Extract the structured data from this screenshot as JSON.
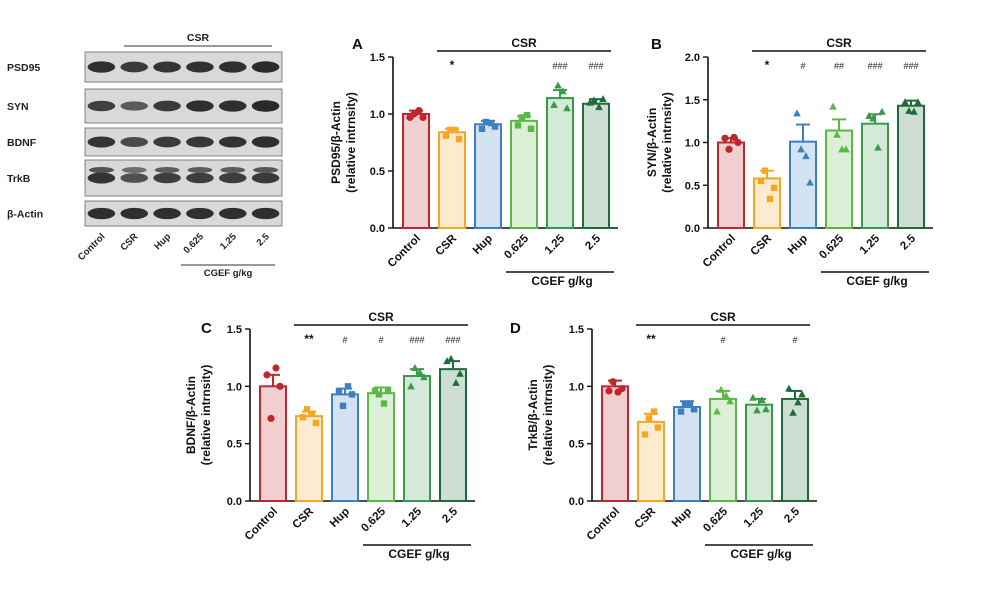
{
  "blot": {
    "group_label": "CSR",
    "proteins": [
      "PSD95",
      "SYN",
      "BDNF",
      "TrkB",
      "β-Actin"
    ],
    "lanes": [
      "Control",
      "CSR",
      "Hup",
      "0.625",
      "1.25",
      "2.5"
    ],
    "dose_label": "CGEF g/kg"
  },
  "colors": {
    "Control": "#c0272d",
    "CSR": "#f7a623",
    "Hup": "#3d7fc1",
    "0.625": "#5ab946",
    "1.25": "#3a9a4a",
    "2.5": "#1f6b3a"
  },
  "chart_data": [
    {
      "panel": "A",
      "type": "bar",
      "categories": [
        "Control",
        "CSR",
        "Hup",
        "0.625",
        "1.25",
        "2.5"
      ],
      "values": [
        1.0,
        0.84,
        0.91,
        0.94,
        1.14,
        1.09
      ],
      "errors": [
        0.03,
        0.03,
        0.03,
        0.04,
        0.07,
        0.04
      ],
      "points": [
        [
          0.97,
          1.0,
          1.03,
          0.97
        ],
        [
          0.81,
          0.86,
          0.86,
          0.78
        ],
        [
          0.87,
          0.93,
          0.92,
          0.89
        ],
        [
          0.9,
          0.97,
          0.99,
          0.87
        ],
        [
          1.08,
          1.25,
          1.2,
          1.05
        ],
        [
          1.1,
          1.12,
          1.06,
          1.13
        ]
      ],
      "markers": [
        "circle",
        "square",
        "square",
        "square",
        "triangle",
        "triangle"
      ],
      "significance": [
        "",
        "*",
        "",
        "",
        "###",
        "###"
      ],
      "ylabel": [
        "PSD95/β-Actin",
        "(relative intrnsity)"
      ],
      "ylim": [
        0,
        1.5
      ],
      "yticks": [
        "0.0",
        "0.5",
        "1.0",
        "1.5"
      ],
      "group_bracket": "CSR",
      "dose_label": "CGEF g/kg"
    },
    {
      "panel": "B",
      "type": "bar",
      "categories": [
        "Control",
        "CSR",
        "Hup",
        "0.625",
        "1.25",
        "2.5"
      ],
      "values": [
        1.0,
        0.58,
        1.01,
        1.14,
        1.22,
        1.43
      ],
      "errors": [
        0.05,
        0.09,
        0.2,
        0.13,
        0.11,
        0.06
      ],
      "points": [
        [
          1.05,
          0.92,
          1.06,
          1.0
        ],
        [
          0.55,
          0.67,
          0.34,
          0.47
        ],
        [
          1.34,
          0.92,
          0.84,
          0.53
        ],
        [
          1.42,
          1.09,
          0.92,
          0.92
        ],
        [
          1.31,
          1.28,
          0.94,
          1.36
        ],
        [
          1.47,
          1.37,
          1.36,
          1.47
        ]
      ],
      "markers": [
        "circle",
        "square",
        "triangle",
        "triangle",
        "triangle",
        "triangle"
      ],
      "significance": [
        "",
        "*",
        "#",
        "##",
        "###",
        "###"
      ],
      "ylabel": [
        "SYN/β-Actin",
        "(relative intrnsity)"
      ],
      "ylim": [
        0,
        2.0
      ],
      "yticks": [
        "0.0",
        "0.5",
        "1.0",
        "1.5",
        "2.0"
      ],
      "group_bracket": "CSR",
      "dose_label": "CGEF g/kg"
    },
    {
      "panel": "C",
      "type": "bar",
      "categories": [
        "Control",
        "CSR",
        "Hup",
        "0.625",
        "1.25",
        "2.5"
      ],
      "values": [
        1.0,
        0.74,
        0.93,
        0.94,
        1.09,
        1.15
      ],
      "errors": [
        0.1,
        0.04,
        0.05,
        0.05,
        0.06,
        0.07
      ],
      "points": [
        [
          1.1,
          0.72,
          1.16,
          1.0
        ],
        [
          0.73,
          0.8,
          0.76,
          0.68
        ],
        [
          0.96,
          0.83,
          1.0,
          0.93
        ],
        [
          0.96,
          0.93,
          0.85,
          0.97
        ],
        [
          1.0,
          1.16,
          1.12,
          1.08
        ],
        [
          1.22,
          1.24,
          1.03,
          1.11
        ]
      ],
      "markers": [
        "circle",
        "square",
        "square",
        "square",
        "triangle",
        "triangle"
      ],
      "significance": [
        "",
        "**",
        "#",
        "#",
        "###",
        "###"
      ],
      "ylabel": [
        "BDNF/β-Actin",
        "(relative intrnsity)"
      ],
      "ylim": [
        0,
        1.5
      ],
      "yticks": [
        "0.0",
        "0.5",
        "1.0",
        "1.5"
      ],
      "group_bracket": "CSR",
      "dose_label": "CGEF g/kg"
    },
    {
      "panel": "D",
      "type": "bar",
      "categories": [
        "Control",
        "CSR",
        "Hup",
        "0.625",
        "1.25",
        "2.5"
      ],
      "values": [
        1.0,
        0.69,
        0.82,
        0.89,
        0.84,
        0.89
      ],
      "errors": [
        0.05,
        0.07,
        0.05,
        0.07,
        0.05,
        0.07
      ],
      "points": [
        [
          0.96,
          1.04,
          0.95,
          0.98
        ],
        [
          0.58,
          0.72,
          0.78,
          0.64
        ],
        [
          0.78,
          0.84,
          0.85,
          0.8
        ],
        [
          0.78,
          0.97,
          0.92,
          0.87
        ],
        [
          0.9,
          0.79,
          0.88,
          0.8
        ],
        [
          0.98,
          0.77,
          0.86,
          0.93
        ]
      ],
      "markers": [
        "circle",
        "square",
        "square",
        "triangle",
        "triangle",
        "triangle"
      ],
      "significance": [
        "",
        "**",
        "",
        "#",
        "",
        "#"
      ],
      "ylabel": [
        "TrkB/β-Actin",
        "(relative intrnsity)"
      ],
      "ylim": [
        0,
        1.5
      ],
      "yticks": [
        "0.0",
        "0.5",
        "1.0",
        "1.5"
      ],
      "group_bracket": "CSR",
      "dose_label": "CGEF g/kg"
    }
  ]
}
